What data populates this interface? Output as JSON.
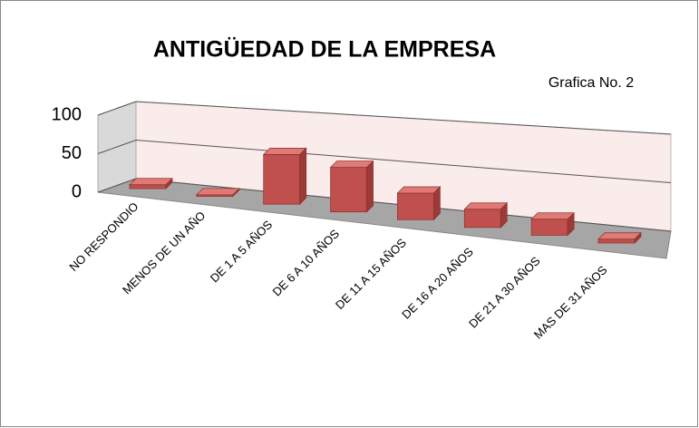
{
  "chart_data": {
    "type": "bar3d",
    "title": "ANTIGÜEDAD DE LA EMPRESA",
    "annotation": "Grafica No. 2",
    "categories": [
      "NO RESPONDIO",
      "MENOS DE UN AÑO",
      "DE 1  A 5 AÑOS",
      "DE 6 A 10 AÑOS",
      "DE 11 A 15 AÑOS",
      "DE 16 A 20 AÑOS",
      "DE 21  A 30 AÑOS",
      "MAS DE 31 AÑOS"
    ],
    "values": [
      5,
      2,
      60,
      52,
      30,
      20,
      17,
      4
    ],
    "color": "#c0504d",
    "ylim": [
      0,
      100
    ],
    "yticks": [
      0,
      50,
      100
    ],
    "grid": true
  }
}
